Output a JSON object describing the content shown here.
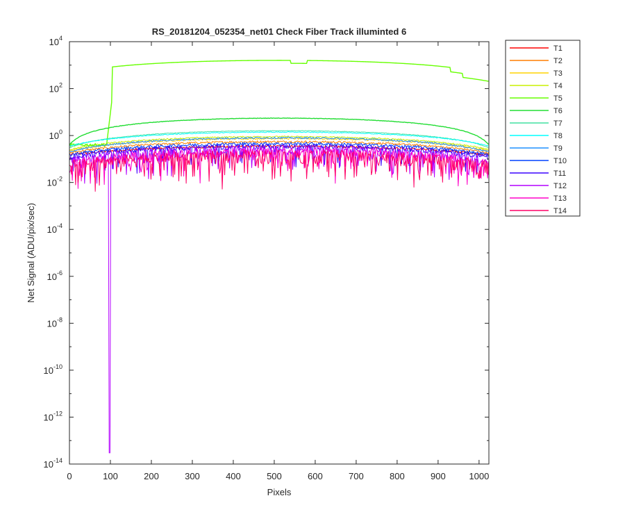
{
  "chart_data": {
    "type": "line",
    "title": "RS_20181204_052354_net01    Check Fiber     Track illuminted 6",
    "xlabel": "Pixels",
    "ylabel": "Net Signal (ADU/pix/sec)",
    "xlim": [
      0,
      1024
    ],
    "ylim_log10": [
      -14,
      4
    ],
    "yscale": "log",
    "x_ticks": [
      0,
      100,
      200,
      300,
      400,
      500,
      600,
      700,
      800,
      900,
      1000
    ],
    "y_tick_exponents": [
      -14,
      -12,
      -10,
      -8,
      -6,
      -4,
      -2,
      0,
      2,
      4
    ],
    "y_tick_base": "10",
    "grid": false,
    "legend_position": "outside-right",
    "series": [
      {
        "name": "T1",
        "color": "#ff0000",
        "level": 0.35,
        "edge": 0.15,
        "noise": 0.12
      },
      {
        "name": "T2",
        "color": "#ff7f00",
        "level": 0.55,
        "edge": 0.18,
        "noise": 0.1
      },
      {
        "name": "T3",
        "color": "#ffd400",
        "level": 0.75,
        "edge": 0.22,
        "noise": 0.08
      },
      {
        "name": "T4",
        "color": "#c8f000",
        "level": 0.9,
        "edge": 0.25,
        "noise": 0.06
      },
      {
        "name": "T5",
        "color": "#66ff00",
        "level": 1600,
        "edge": 0.3,
        "noise": 0.02
      },
      {
        "name": "T6",
        "color": "#22dd33",
        "level": 5.5,
        "edge": 0.4,
        "noise": 0.02
      },
      {
        "name": "T7",
        "color": "#40e0a0",
        "level": 1.6,
        "edge": 0.3,
        "noise": 0.03
      },
      {
        "name": "T8",
        "color": "#00ffff",
        "level": 1.4,
        "edge": 0.35,
        "noise": 0.04
      },
      {
        "name": "T9",
        "color": "#1e90ff",
        "level": 0.8,
        "edge": 0.2,
        "noise": 0.08
      },
      {
        "name": "T10",
        "color": "#0040ff",
        "level": 0.45,
        "edge": 0.15,
        "noise": 0.15
      },
      {
        "name": "T11",
        "color": "#3a00ff",
        "level": 0.35,
        "edge": 0.12,
        "noise": 0.25
      },
      {
        "name": "T12",
        "color": "#b400ff",
        "level": 0.25,
        "edge": 0.08,
        "noise": 0.45
      },
      {
        "name": "T13",
        "color": "#ff00c8",
        "level": 0.2,
        "edge": 0.06,
        "noise": 0.55
      },
      {
        "name": "T14",
        "color": "#ff0066",
        "level": 0.15,
        "edge": 0.05,
        "noise": 0.6
      }
    ]
  }
}
